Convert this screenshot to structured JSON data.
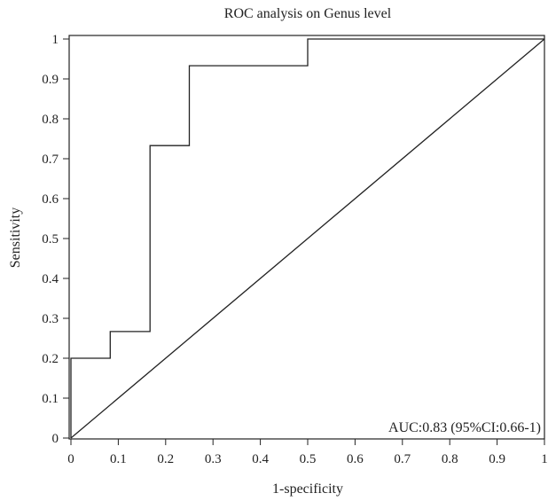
{
  "chart_data": {
    "type": "line",
    "title": "ROC analysis on Genus level",
    "xlabel": "1-specificity",
    "ylabel": "Sensitivity",
    "xlim": [
      0,
      1
    ],
    "ylim": [
      0,
      1
    ],
    "x_ticks": [
      "0",
      "0.1",
      "0.2",
      "0.3",
      "0.4",
      "0.5",
      "0.6",
      "0.7",
      "0.8",
      "0.9",
      "1"
    ],
    "y_ticks": [
      "0",
      "0.1",
      "0.2",
      "0.3",
      "0.4",
      "0.5",
      "0.6",
      "0.7",
      "0.8",
      "0.9",
      "1"
    ],
    "grid": false,
    "legend": "none",
    "annotation": "AUC:0.83 (95%CI:0.66-1)",
    "series": [
      {
        "x": [
          0,
          0,
          0.083,
          0.083,
          0.167,
          0.167,
          0.25,
          0.25,
          0.5,
          0.5,
          1
        ],
        "y": [
          0,
          0.2,
          0.2,
          0.267,
          0.267,
          0.733,
          0.733,
          0.933,
          0.933,
          1,
          1
        ],
        "color": "#222222"
      },
      {
        "x": [
          0,
          1
        ],
        "y": [
          0,
          1
        ],
        "color": "#222222"
      }
    ]
  }
}
